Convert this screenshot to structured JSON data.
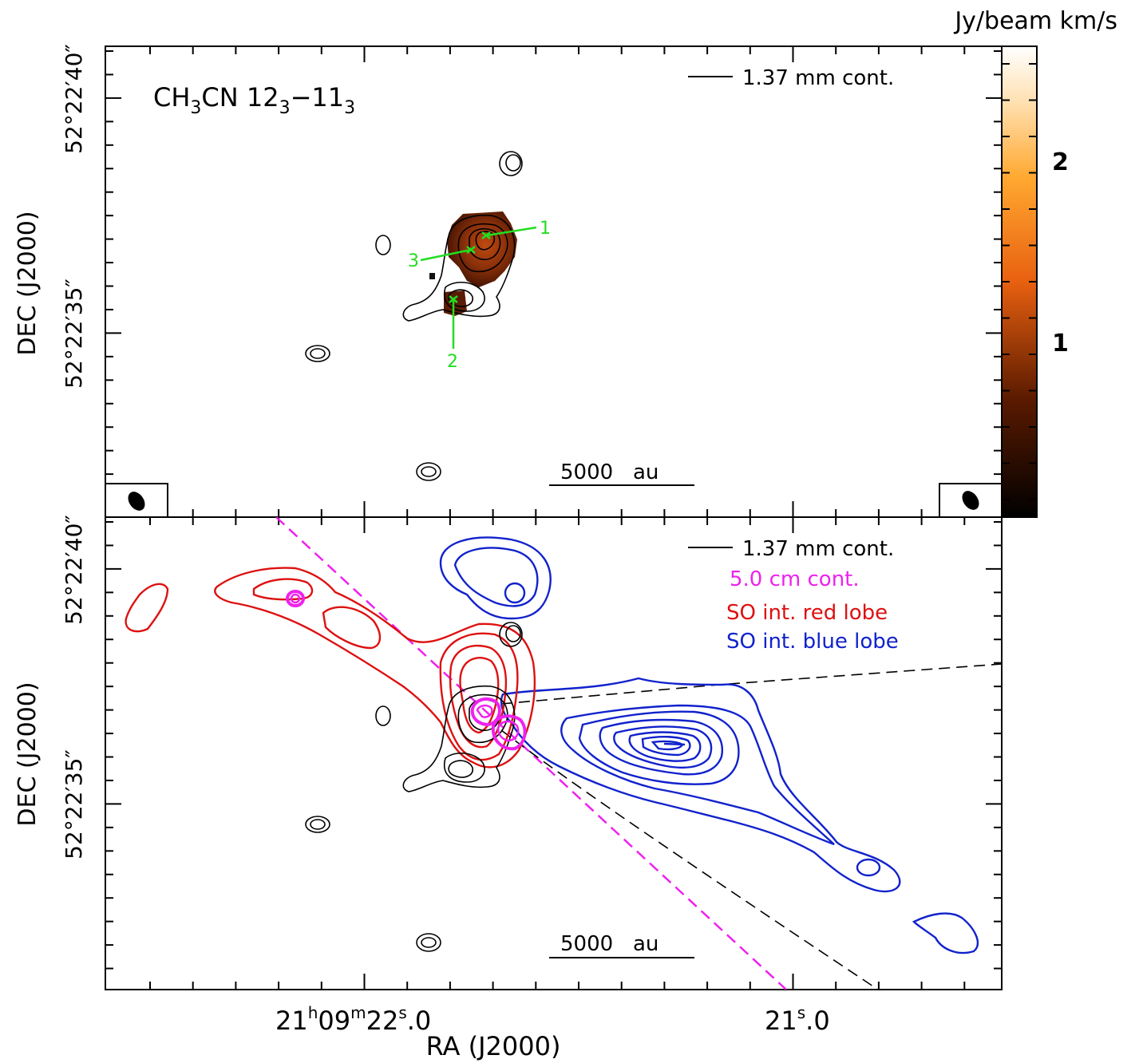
{
  "chart_data": [
    {
      "type": "contour",
      "panel": "top",
      "title": "CH3CN 123-113",
      "title_parts": {
        "pre": "CH",
        "sub1": "3",
        "mid": "CN 12",
        "sub2": "3",
        "dash": "−11",
        "sub3": "3"
      },
      "xlabel": "RA (J2000)",
      "ylabel": "DEC (J2000)",
      "ytick_labels": [
        "52°22′40″",
        "52°22′35″"
      ],
      "xtick_labels": [],
      "legend": [
        "1.37 mm cont."
      ],
      "scalebar": "5000   au",
      "colorbar": {
        "label": "Jy/beam km/s",
        "ticks": [
          "1",
          "2"
        ],
        "range": [
          0,
          2.6
        ],
        "colormap": "black-orange-white"
      },
      "markers": [
        "1",
        "2",
        "3"
      ],
      "marker_color": "#22dd22"
    },
    {
      "type": "contour",
      "panel": "bottom",
      "xlabel": "RA (J2000)",
      "ylabel": "DEC (J2000)",
      "ytick_labels": [
        "52°22′40″",
        "52°22′35″"
      ],
      "xtick_labels": [
        "21h09m22.0s",
        "21s.0"
      ],
      "xtick_parts": {
        "a1": "21",
        "a_h": "h",
        "a2": "09",
        "a_m": "m",
        "a3": "22",
        "a_s": "s",
        "a4": ".0",
        "b1": "21",
        "b_s": "s",
        "b2": ".0"
      },
      "legend": [
        "1.37 mm cont.",
        "5.0 cm cont.",
        "SO int. red lobe",
        "SO int. blue lobe"
      ],
      "legend_colors": [
        "#000000",
        "#ee22ee",
        "#dd1111",
        "#1122cc"
      ],
      "scalebar": "5000   au"
    }
  ]
}
